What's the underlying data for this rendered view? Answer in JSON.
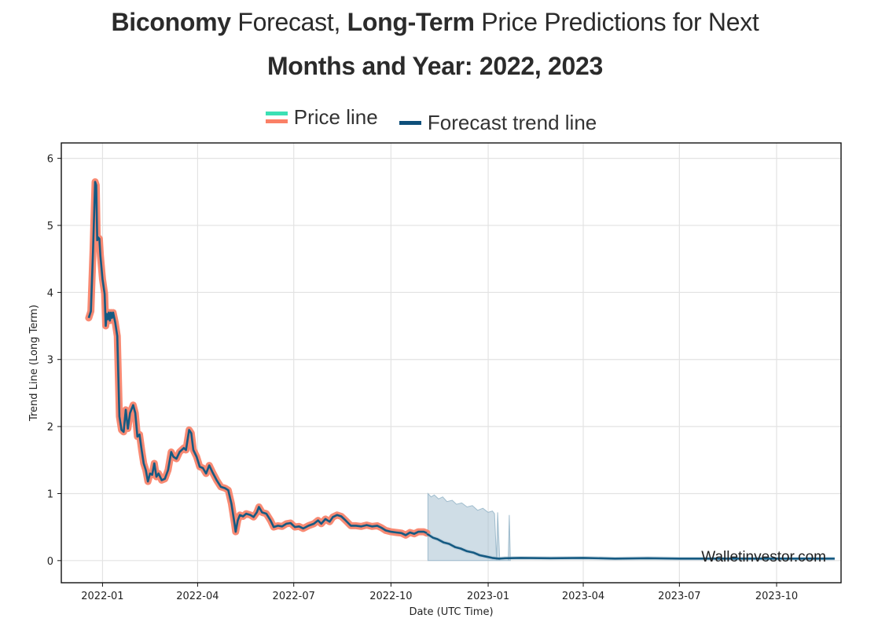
{
  "title": {
    "line1_bold1": "Biconomy",
    "line1_normal1": " Forecast, ",
    "line1_bold2": "Long-Term",
    "line1_normal2": " Price Predictions for Next",
    "line2": "Months and Year: 2022, 2023"
  },
  "legend": {
    "price_label": "Price line",
    "forecast_label": "Forecast trend line"
  },
  "colors": {
    "price_outer": "#fa8066",
    "price_legend_top": "#3be0b4",
    "trend": "#155a82",
    "band": "#9fbccd",
    "grid": "#e3e3e3",
    "frame": "#111111"
  },
  "chart_data": {
    "type": "line",
    "title": "Biconomy Forecast, Long-Term Price Predictions for Next Months and Year: 2022, 2023",
    "xlabel": "Date (UTC Time)",
    "ylabel": "Trend Line (Long Term)",
    "ylim": [
      -0.33,
      6.23
    ],
    "xlim": [
      "2021-11-23",
      "2023-12-01"
    ],
    "grid": true,
    "legend_position": "top-center",
    "watermark": "Walletinvestor.com",
    "x_ticks": [
      "2022-01",
      "2022-04",
      "2022-07",
      "2022-10",
      "2023-01",
      "2023-04",
      "2023-07",
      "2023-10"
    ],
    "y_ticks": [
      0,
      1,
      2,
      3,
      4,
      5,
      6
    ],
    "series": [
      {
        "name": "Price line",
        "points": [
          [
            "2021-12-19",
            3.62
          ],
          [
            "2021-12-21",
            3.72
          ],
          [
            "2021-12-23",
            4.6
          ],
          [
            "2021-12-25",
            5.65
          ],
          [
            "2021-12-26",
            5.6
          ],
          [
            "2021-12-27",
            4.78
          ],
          [
            "2021-12-28",
            4.82
          ],
          [
            "2021-12-29",
            4.8
          ],
          [
            "2021-12-30",
            4.55
          ],
          [
            "2022-01-01",
            4.2
          ],
          [
            "2022-01-03",
            3.98
          ],
          [
            "2022-01-04",
            3.5
          ],
          [
            "2022-01-05",
            3.68
          ],
          [
            "2022-01-06",
            3.6
          ],
          [
            "2022-01-07",
            3.7
          ],
          [
            "2022-01-08",
            3.58
          ],
          [
            "2022-01-09",
            3.7
          ],
          [
            "2022-01-10",
            3.62
          ],
          [
            "2022-01-11",
            3.7
          ],
          [
            "2022-01-13",
            3.55
          ],
          [
            "2022-01-15",
            3.35
          ],
          [
            "2022-01-17",
            2.15
          ],
          [
            "2022-01-19",
            1.95
          ],
          [
            "2022-01-21",
            1.92
          ],
          [
            "2022-01-23",
            2.25
          ],
          [
            "2022-01-25",
            1.97
          ],
          [
            "2022-01-27",
            2.2
          ],
          [
            "2022-01-30",
            2.32
          ],
          [
            "2022-02-01",
            2.2
          ],
          [
            "2022-02-03",
            1.85
          ],
          [
            "2022-02-05",
            1.88
          ],
          [
            "2022-02-07",
            1.65
          ],
          [
            "2022-02-09",
            1.45
          ],
          [
            "2022-02-11",
            1.35
          ],
          [
            "2022-02-13",
            1.18
          ],
          [
            "2022-02-15",
            1.3
          ],
          [
            "2022-02-17",
            1.28
          ],
          [
            "2022-02-19",
            1.45
          ],
          [
            "2022-02-21",
            1.25
          ],
          [
            "2022-02-23",
            1.3
          ],
          [
            "2022-02-26",
            1.2
          ],
          [
            "2022-03-01",
            1.22
          ],
          [
            "2022-03-04",
            1.35
          ],
          [
            "2022-03-07",
            1.62
          ],
          [
            "2022-03-09",
            1.55
          ],
          [
            "2022-03-12",
            1.52
          ],
          [
            "2022-03-15",
            1.62
          ],
          [
            "2022-03-19",
            1.68
          ],
          [
            "2022-03-21",
            1.65
          ],
          [
            "2022-03-24",
            1.95
          ],
          [
            "2022-03-26",
            1.9
          ],
          [
            "2022-03-28",
            1.65
          ],
          [
            "2022-03-31",
            1.55
          ],
          [
            "2022-04-03",
            1.4
          ],
          [
            "2022-04-06",
            1.38
          ],
          [
            "2022-04-09",
            1.3
          ],
          [
            "2022-04-12",
            1.42
          ],
          [
            "2022-04-15",
            1.32
          ],
          [
            "2022-04-19",
            1.2
          ],
          [
            "2022-04-23",
            1.1
          ],
          [
            "2022-04-27",
            1.08
          ],
          [
            "2022-04-30",
            1.05
          ],
          [
            "2022-05-03",
            0.85
          ],
          [
            "2022-05-06",
            0.55
          ],
          [
            "2022-05-07",
            0.43
          ],
          [
            "2022-05-09",
            0.6
          ],
          [
            "2022-05-11",
            0.68
          ],
          [
            "2022-05-14",
            0.66
          ],
          [
            "2022-05-17",
            0.7
          ],
          [
            "2022-05-21",
            0.68
          ],
          [
            "2022-05-24",
            0.65
          ],
          [
            "2022-05-27",
            0.72
          ],
          [
            "2022-05-29",
            0.8
          ],
          [
            "2022-06-01",
            0.72
          ],
          [
            "2022-06-05",
            0.7
          ],
          [
            "2022-06-09",
            0.6
          ],
          [
            "2022-06-12",
            0.5
          ],
          [
            "2022-06-16",
            0.52
          ],
          [
            "2022-06-20",
            0.51
          ],
          [
            "2022-06-24",
            0.55
          ],
          [
            "2022-06-28",
            0.56
          ],
          [
            "2022-07-02",
            0.5
          ],
          [
            "2022-07-06",
            0.51
          ],
          [
            "2022-07-10",
            0.48
          ],
          [
            "2022-07-15",
            0.52
          ],
          [
            "2022-07-20",
            0.55
          ],
          [
            "2022-07-24",
            0.6
          ],
          [
            "2022-07-27",
            0.55
          ],
          [
            "2022-07-31",
            0.62
          ],
          [
            "2022-08-04",
            0.58
          ],
          [
            "2022-08-07",
            0.65
          ],
          [
            "2022-08-11",
            0.68
          ],
          [
            "2022-08-15",
            0.66
          ],
          [
            "2022-08-19",
            0.6
          ],
          [
            "2022-08-24",
            0.52
          ],
          [
            "2022-08-29",
            0.52
          ],
          [
            "2022-09-03",
            0.51
          ],
          [
            "2022-09-08",
            0.53
          ],
          [
            "2022-09-13",
            0.51
          ],
          [
            "2022-09-18",
            0.52
          ],
          [
            "2022-09-22",
            0.49
          ],
          [
            "2022-09-26",
            0.45
          ],
          [
            "2022-10-01",
            0.43
          ],
          [
            "2022-10-06",
            0.42
          ],
          [
            "2022-10-11",
            0.41
          ],
          [
            "2022-10-15",
            0.38
          ],
          [
            "2022-10-19",
            0.42
          ],
          [
            "2022-10-23",
            0.4
          ],
          [
            "2022-10-27",
            0.43
          ],
          [
            "2022-11-01",
            0.43
          ],
          [
            "2022-11-04",
            0.41
          ]
        ]
      },
      {
        "name": "Forecast trend line",
        "points": [
          [
            "2022-11-04",
            0.4
          ],
          [
            "2022-11-10",
            0.34
          ],
          [
            "2022-11-14",
            0.32
          ],
          [
            "2022-11-20",
            0.27
          ],
          [
            "2022-11-25",
            0.25
          ],
          [
            "2022-12-01",
            0.2
          ],
          [
            "2022-12-06",
            0.18
          ],
          [
            "2022-12-12",
            0.14
          ],
          [
            "2022-12-18",
            0.12
          ],
          [
            "2022-12-24",
            0.08
          ],
          [
            "2022-12-30",
            0.06
          ],
          [
            "2023-01-05",
            0.04
          ],
          [
            "2023-01-11",
            0.03
          ],
          [
            "2023-01-17",
            0.035
          ],
          [
            "2023-02-01",
            0.04
          ],
          [
            "2023-03-01",
            0.035
          ],
          [
            "2023-04-01",
            0.04
          ],
          [
            "2023-05-01",
            0.03
          ],
          [
            "2023-06-01",
            0.035
          ],
          [
            "2023-07-01",
            0.03
          ],
          [
            "2023-08-01",
            0.03
          ],
          [
            "2023-09-01",
            0.03
          ],
          [
            "2023-10-01",
            0.03
          ],
          [
            "2023-11-01",
            0.03
          ],
          [
            "2023-11-25",
            0.03
          ]
        ]
      },
      {
        "name": "Forecast confidence band (upper)",
        "points": [
          [
            "2022-11-05",
            1.0
          ],
          [
            "2022-11-08",
            0.95
          ],
          [
            "2022-11-11",
            0.98
          ],
          [
            "2022-11-15",
            0.92
          ],
          [
            "2022-11-19",
            0.95
          ],
          [
            "2022-11-23",
            0.88
          ],
          [
            "2022-11-28",
            0.9
          ],
          [
            "2022-12-02",
            0.84
          ],
          [
            "2022-12-07",
            0.86
          ],
          [
            "2022-12-12",
            0.8
          ],
          [
            "2022-12-17",
            0.82
          ],
          [
            "2022-12-22",
            0.75
          ],
          [
            "2022-12-27",
            0.78
          ],
          [
            "2023-01-01",
            0.72
          ],
          [
            "2023-01-05",
            0.74
          ],
          [
            "2023-01-07",
            0.7
          ],
          [
            "2023-01-09",
            0.0
          ],
          [
            "2023-01-10",
            0.72
          ],
          [
            "2023-01-12",
            0.0
          ],
          [
            "2023-01-20",
            0.0
          ],
          [
            "2023-01-21",
            0.68
          ],
          [
            "2023-01-22",
            0.0
          ]
        ]
      }
    ]
  }
}
